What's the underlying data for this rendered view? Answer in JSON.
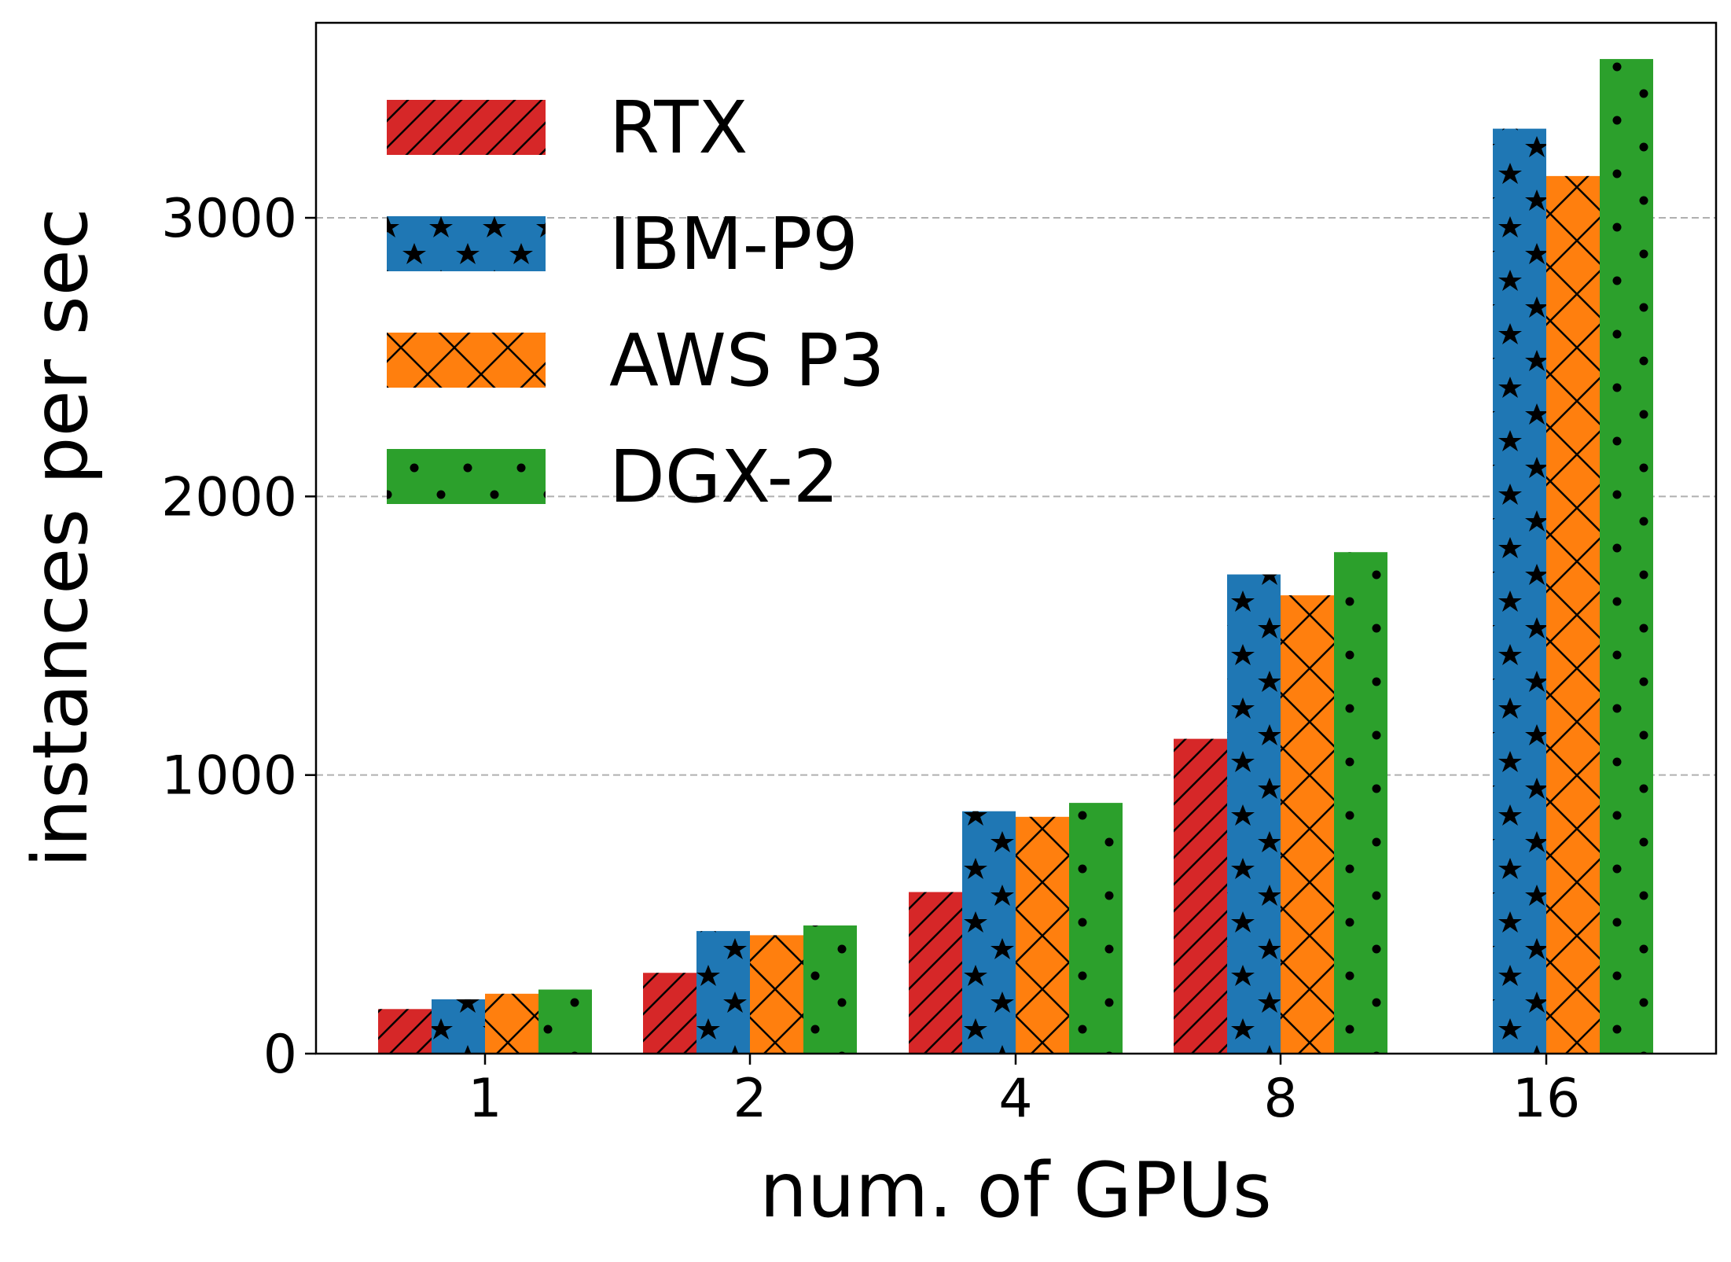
{
  "chart_data": {
    "type": "bar",
    "xlabel": "num. of GPUs",
    "ylabel": "instances per sec",
    "categories": [
      "1",
      "2",
      "4",
      "8",
      "16"
    ],
    "series": [
      {
        "name": "RTX",
        "color": "#d62728",
        "pattern": "diagonal-hatch",
        "values": [
          160,
          290,
          580,
          1130,
          null
        ]
      },
      {
        "name": "IBM-P9",
        "color": "#1f77b4",
        "pattern": "stars",
        "values": [
          195,
          440,
          870,
          1720,
          3320
        ]
      },
      {
        "name": "AWS P3",
        "color": "#ff7f0e",
        "pattern": "cross-hatch",
        "values": [
          215,
          425,
          850,
          1645,
          3150
        ]
      },
      {
        "name": "DGX-2",
        "color": "#2ca02c",
        "pattern": "dots",
        "values": [
          230,
          460,
          900,
          1800,
          3570
        ]
      }
    ],
    "ylim": [
      0,
      3700
    ],
    "yticks": [
      0,
      1000,
      2000,
      3000
    ],
    "grid": "horizontal-dashed",
    "legend": "top-left"
  }
}
